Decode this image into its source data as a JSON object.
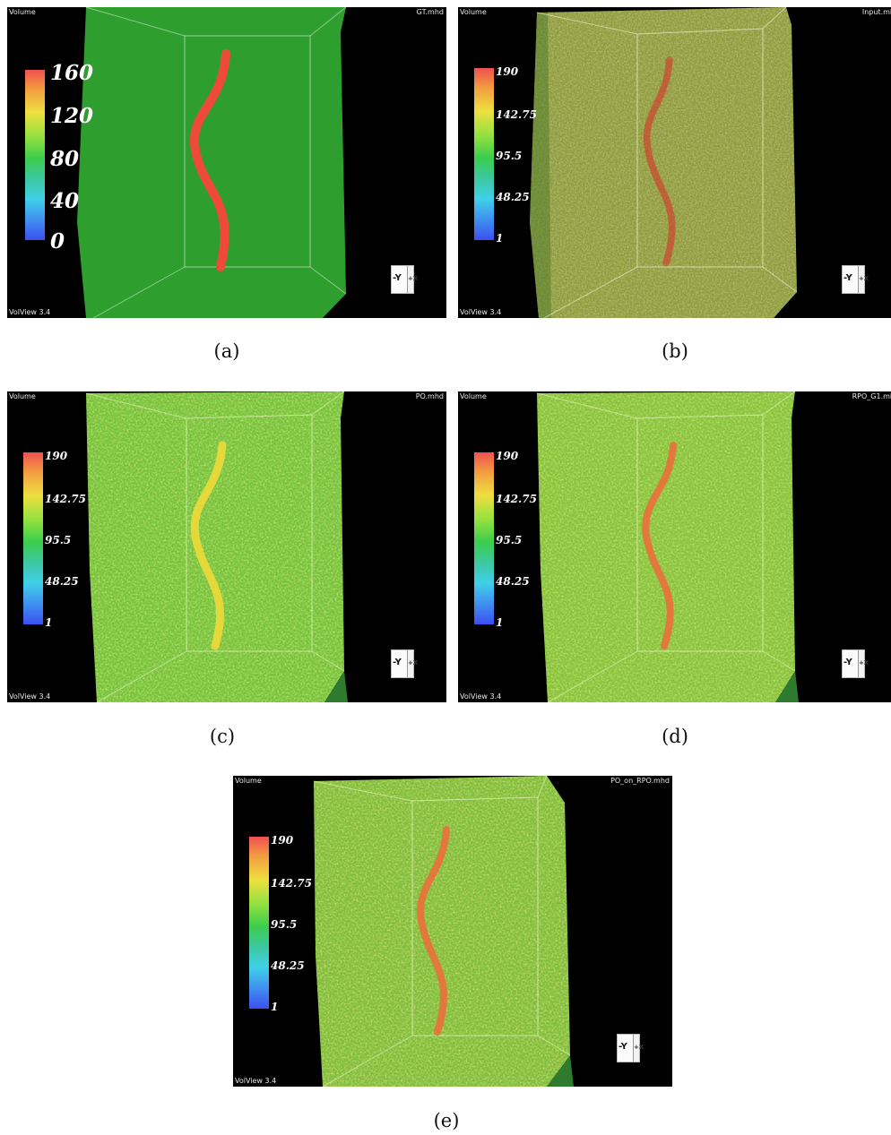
{
  "panels": [
    {
      "id": "a",
      "top_left": "Volume",
      "top_right": "GT.mhd",
      "bottom_left": "VolView 3.4",
      "colorbar_ticks": [
        "160",
        "120",
        "80",
        "40",
        "0"
      ],
      "orientation": {
        "face": "-Y",
        "side": "+X"
      },
      "caption": "(a)"
    },
    {
      "id": "b",
      "top_left": "Volume",
      "top_right": "Input.mh",
      "bottom_left": "VolView 3.4",
      "colorbar_ticks": [
        "190",
        "142.75",
        "95.5",
        "48.25",
        "1"
      ],
      "orientation": {
        "face": "-Y",
        "side": "+X"
      },
      "caption": "(b)"
    },
    {
      "id": "c",
      "top_left": "Volume",
      "top_right": "PO.mhd",
      "bottom_left": "VolView 3.4",
      "colorbar_ticks": [
        "190",
        "142.75",
        "95.5",
        "48.25",
        "1"
      ],
      "orientation": {
        "face": "-Y",
        "side": "+X"
      },
      "caption": "(c)"
    },
    {
      "id": "d",
      "top_left": "Volume",
      "top_right": "RPO_G1.mh",
      "bottom_left": "VolView 3.4",
      "colorbar_ticks": [
        "190",
        "142.75",
        "95.5",
        "48.25",
        "1"
      ],
      "orientation": {
        "face": "-Y",
        "side": "+X"
      },
      "caption": "(d)"
    },
    {
      "id": "e",
      "top_left": "Volume",
      "top_right": "PO_on_RPO.mhd",
      "bottom_left": "VolView 3.4",
      "colorbar_ticks": [
        "190",
        "142.75",
        "95.5",
        "48.25",
        "1"
      ],
      "orientation": {
        "face": "-Y",
        "side": "+X"
      },
      "caption": "(e)"
    }
  ],
  "colors": {
    "background": "#000000",
    "gt_volume": "#2e9e2e",
    "noisy_volume_b": "#8f9a3c",
    "noisy_volume_green": "#74c23c",
    "vessel_red": "#ee4a3c",
    "vessel_yellow": "#e4d83a",
    "vessel_orange": "#e2783c"
  }
}
